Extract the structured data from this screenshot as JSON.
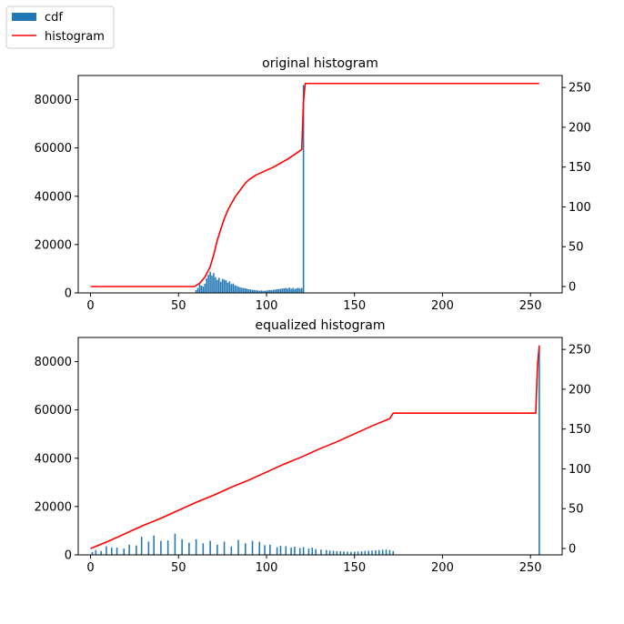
{
  "legend": [
    {
      "label": "cdf",
      "color": "#1f77b4",
      "kind": "patch"
    },
    {
      "label": "histogram",
      "color": "#ff0000",
      "kind": "line"
    }
  ],
  "chart_data": [
    {
      "type": "bar",
      "title": "original histogram",
      "xlim": [
        -7,
        268
      ],
      "ylim": [
        0,
        90000
      ],
      "y2lim": [
        -8,
        265
      ],
      "xticks": [
        0,
        50,
        100,
        150,
        200,
        250
      ],
      "yticks": [
        0,
        20000,
        40000,
        60000,
        80000
      ],
      "y2ticks": [
        0,
        50,
        100,
        150,
        200,
        250
      ],
      "bar_color": "#1f77b4",
      "line_color": "#ff0000",
      "bars": {
        "x": [
          60,
          61,
          62,
          63,
          64,
          65,
          66,
          67,
          68,
          69,
          70,
          71,
          72,
          73,
          74,
          75,
          76,
          77,
          78,
          79,
          80,
          81,
          82,
          83,
          84,
          85,
          86,
          87,
          88,
          89,
          90,
          91,
          92,
          93,
          94,
          95,
          96,
          97,
          98,
          99,
          100,
          101,
          102,
          103,
          104,
          105,
          106,
          107,
          108,
          109,
          110,
          111,
          112,
          113,
          114,
          115,
          116,
          117,
          118,
          119,
          120,
          121
        ],
        "values": [
          1200,
          2000,
          3500,
          3000,
          2600,
          3800,
          6000,
          7500,
          8800,
          7200,
          8200,
          6500,
          5400,
          6200,
          4600,
          5800,
          5500,
          5200,
          4200,
          4800,
          3600,
          3900,
          3200,
          2900,
          2600,
          2300,
          2100,
          2000,
          1900,
          1700,
          1500,
          1400,
          1300,
          1200,
          1100,
          1000,
          900,
          1000,
          900,
          850,
          1000,
          1100,
          1200,
          1100,
          1300,
          1400,
          1500,
          1600,
          1700,
          1800,
          1900,
          2000,
          1800,
          2200,
          1700,
          2100,
          1600,
          1900,
          2100,
          1800,
          2000,
          86000
        ]
      },
      "line": {
        "x": [
          0,
          59,
          62,
          65,
          68,
          70,
          72,
          74,
          76,
          78,
          80,
          82,
          84,
          86,
          88,
          90,
          92,
          94,
          96,
          98,
          100,
          104,
          108,
          112,
          116,
          120,
          121,
          122,
          255
        ],
        "y": [
          0,
          0,
          4,
          12,
          25,
          40,
          58,
          72,
          85,
          96,
          104,
          112,
          118,
          124,
          130,
          134,
          137,
          140,
          142,
          144,
          146,
          150,
          155,
          160,
          166,
          172,
          232,
          255,
          255
        ]
      }
    },
    {
      "type": "bar",
      "title": "equalized histogram",
      "xlim": [
        -7,
        268
      ],
      "ylim": [
        0,
        90000
      ],
      "y2lim": [
        -8,
        265
      ],
      "xticks": [
        0,
        50,
        100,
        150,
        200,
        250
      ],
      "yticks": [
        0,
        20000,
        40000,
        60000,
        80000
      ],
      "y2ticks": [
        0,
        50,
        100,
        150,
        200,
        250
      ],
      "bar_color": "#1f77b4",
      "line_color": "#ff0000",
      "bars": {
        "x": [
          1,
          3,
          6,
          9,
          12,
          15,
          19,
          22,
          26,
          29,
          33,
          36,
          40,
          44,
          48,
          52,
          56,
          60,
          64,
          68,
          72,
          76,
          80,
          84,
          88,
          92,
          96,
          99,
          102,
          106,
          108,
          111,
          114,
          116,
          119,
          121,
          124,
          126,
          128,
          131,
          134,
          136,
          138,
          140,
          142,
          144,
          146,
          148,
          150,
          152,
          154,
          156,
          158,
          160,
          162,
          164,
          166,
          168,
          170,
          172,
          255
        ],
        "values": [
          1200,
          2000,
          1600,
          3500,
          3000,
          3000,
          2600,
          4200,
          3900,
          7500,
          5500,
          8000,
          5800,
          6000,
          8800,
          6500,
          5000,
          6500,
          4800,
          5800,
          4200,
          5500,
          3500,
          6200,
          4800,
          5800,
          5400,
          4000,
          4200,
          3200,
          3800,
          3600,
          3000,
          3400,
          2800,
          3200,
          2600,
          3000,
          2400,
          2200,
          2000,
          1800,
          1700,
          1600,
          1500,
          1400,
          1300,
          1200,
          1300,
          1400,
          1500,
          1600,
          1700,
          1800,
          1900,
          2000,
          2100,
          2200,
          2000,
          1600,
          86000
        ]
      },
      "line": {
        "x": [
          0,
          10,
          20,
          30,
          40,
          50,
          60,
          70,
          80,
          90,
          100,
          110,
          120,
          130,
          140,
          150,
          160,
          170,
          172,
          253,
          254,
          255
        ],
        "y": [
          0,
          9,
          19,
          29,
          38,
          48,
          58,
          67,
          77,
          86,
          96,
          106,
          115,
          125,
          134,
          144,
          154,
          163,
          170,
          170,
          230,
          255
        ]
      }
    }
  ]
}
